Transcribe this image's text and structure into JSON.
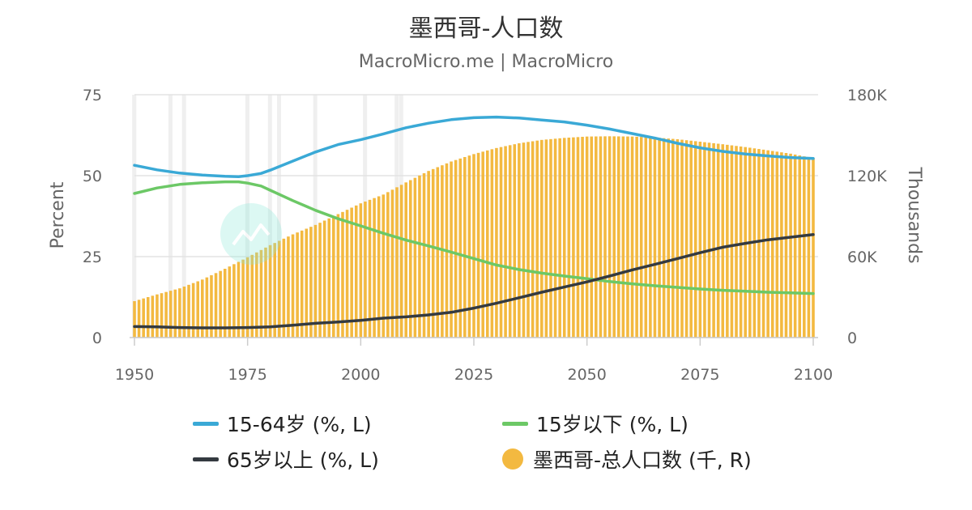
{
  "title": "墨西哥-人口数",
  "subtitle": "MacroMicro.me | MacroMicro",
  "colors": {
    "working_age": "#3aa9d6",
    "under_15": "#6cc866",
    "over_65": "#343a40",
    "population": "#f3b940",
    "recession_band": "#efefef",
    "grid": "#e4e4e4",
    "axis_text": "#666666"
  },
  "chart_data": {
    "type": "line",
    "title": "墨西哥-人口数",
    "subtitle": "MacroMicro.me | MacroMicro",
    "xlabel": "",
    "ylabel_left": "Percent",
    "ylabel_right": "Thousands",
    "xlim": [
      1950,
      2100
    ],
    "ylim_left": [
      0,
      75
    ],
    "ylim_right": [
      0,
      180000
    ],
    "x_ticks": [
      "1950",
      "1975",
      "2000",
      "2025",
      "2050",
      "2075",
      "2100"
    ],
    "y_ticks_left": [
      "0",
      "25",
      "50",
      "75"
    ],
    "y_ticks_right": [
      "0",
      "60K",
      "120K",
      "180K"
    ],
    "grid": true,
    "legend_position": "bottom",
    "shaded_years": [
      1950,
      1958,
      1961,
      1975,
      1980,
      1982,
      1990,
      2001,
      2008,
      2009
    ],
    "series": [
      {
        "name": "15-64岁 (%, L)",
        "axis": "left",
        "type": "line",
        "color": "#3aa9d6",
        "points": [
          [
            1950,
            53.2
          ],
          [
            1955,
            51.8
          ],
          [
            1960,
            50.8
          ],
          [
            1965,
            50.2
          ],
          [
            1970,
            49.8
          ],
          [
            1973,
            49.7
          ],
          [
            1975,
            50.0
          ],
          [
            1978,
            50.7
          ],
          [
            1980,
            51.7
          ],
          [
            1985,
            54.5
          ],
          [
            1990,
            57.3
          ],
          [
            1995,
            59.6
          ],
          [
            2000,
            61.1
          ],
          [
            2005,
            62.9
          ],
          [
            2010,
            64.8
          ],
          [
            2015,
            66.2
          ],
          [
            2020,
            67.3
          ],
          [
            2025,
            67.9
          ],
          [
            2030,
            68.1
          ],
          [
            2035,
            67.8
          ],
          [
            2040,
            67.2
          ],
          [
            2045,
            66.6
          ],
          [
            2050,
            65.6
          ],
          [
            2055,
            64.4
          ],
          [
            2060,
            63.0
          ],
          [
            2065,
            61.6
          ],
          [
            2070,
            60.0
          ],
          [
            2075,
            58.6
          ],
          [
            2080,
            57.5
          ],
          [
            2085,
            56.7
          ],
          [
            2090,
            56.1
          ],
          [
            2095,
            55.6
          ],
          [
            2100,
            55.3
          ]
        ]
      },
      {
        "name": "15岁以下 (%, L)",
        "axis": "left",
        "type": "line",
        "color": "#6cc866",
        "points": [
          [
            1950,
            44.5
          ],
          [
            1955,
            46.2
          ],
          [
            1960,
            47.3
          ],
          [
            1965,
            47.8
          ],
          [
            1970,
            48.1
          ],
          [
            1973,
            48.1
          ],
          [
            1975,
            47.7
          ],
          [
            1978,
            46.8
          ],
          [
            1980,
            45.5
          ],
          [
            1985,
            42.3
          ],
          [
            1990,
            39.3
          ],
          [
            1995,
            36.7
          ],
          [
            2000,
            34.5
          ],
          [
            2005,
            32.2
          ],
          [
            2010,
            30.1
          ],
          [
            2015,
            28.3
          ],
          [
            2020,
            26.4
          ],
          [
            2025,
            24.4
          ],
          [
            2030,
            22.4
          ],
          [
            2035,
            21.0
          ],
          [
            2040,
            19.9
          ],
          [
            2045,
            19.0
          ],
          [
            2050,
            18.2
          ],
          [
            2055,
            17.3
          ],
          [
            2060,
            16.6
          ],
          [
            2065,
            16.0
          ],
          [
            2070,
            15.5
          ],
          [
            2075,
            15.0
          ],
          [
            2080,
            14.6
          ],
          [
            2085,
            14.3
          ],
          [
            2090,
            14.0
          ],
          [
            2095,
            13.8
          ],
          [
            2100,
            13.6
          ]
        ]
      },
      {
        "name": "65岁以上 (%, L)",
        "axis": "left",
        "type": "line",
        "color": "#343a40",
        "points": [
          [
            1950,
            3.4
          ],
          [
            1955,
            3.3
          ],
          [
            1960,
            3.1
          ],
          [
            1965,
            3.0
          ],
          [
            1970,
            3.0
          ],
          [
            1975,
            3.1
          ],
          [
            1980,
            3.3
          ],
          [
            1985,
            3.8
          ],
          [
            1990,
            4.4
          ],
          [
            1995,
            4.8
          ],
          [
            2000,
            5.3
          ],
          [
            2005,
            6.0
          ],
          [
            2010,
            6.4
          ],
          [
            2015,
            7.0
          ],
          [
            2020,
            7.8
          ],
          [
            2025,
            9.1
          ],
          [
            2030,
            10.6
          ],
          [
            2035,
            12.3
          ],
          [
            2040,
            14.0
          ],
          [
            2045,
            15.6
          ],
          [
            2050,
            17.2
          ],
          [
            2055,
            19.0
          ],
          [
            2060,
            20.9
          ],
          [
            2065,
            22.6
          ],
          [
            2070,
            24.4
          ],
          [
            2075,
            26.2
          ],
          [
            2080,
            27.9
          ],
          [
            2085,
            29.1
          ],
          [
            2090,
            30.2
          ],
          [
            2095,
            31.0
          ],
          [
            2100,
            31.8
          ]
        ]
      },
      {
        "name": "墨西哥-总人口数 (千, R)",
        "axis": "right",
        "type": "bar",
        "color": "#f3b940",
        "points": [
          [
            1950,
            27000
          ],
          [
            1955,
            32000
          ],
          [
            1960,
            36500
          ],
          [
            1965,
            43000
          ],
          [
            1970,
            51000
          ],
          [
            1975,
            59500
          ],
          [
            1980,
            68500
          ],
          [
            1985,
            76500
          ],
          [
            1990,
            83500
          ],
          [
            1995,
            91500
          ],
          [
            2000,
            99500
          ],
          [
            2005,
            106000
          ],
          [
            2010,
            115000
          ],
          [
            2015,
            123500
          ],
          [
            2020,
            130500
          ],
          [
            2025,
            136000
          ],
          [
            2030,
            140500
          ],
          [
            2035,
            144000
          ],
          [
            2040,
            146500
          ],
          [
            2045,
            148000
          ],
          [
            2050,
            149000
          ],
          [
            2055,
            149200
          ],
          [
            2060,
            149000
          ],
          [
            2065,
            148300
          ],
          [
            2070,
            147000
          ],
          [
            2075,
            145200
          ],
          [
            2080,
            143300
          ],
          [
            2085,
            141200
          ],
          [
            2090,
            138800
          ],
          [
            2095,
            136300
          ],
          [
            2100,
            133000
          ]
        ]
      }
    ]
  }
}
